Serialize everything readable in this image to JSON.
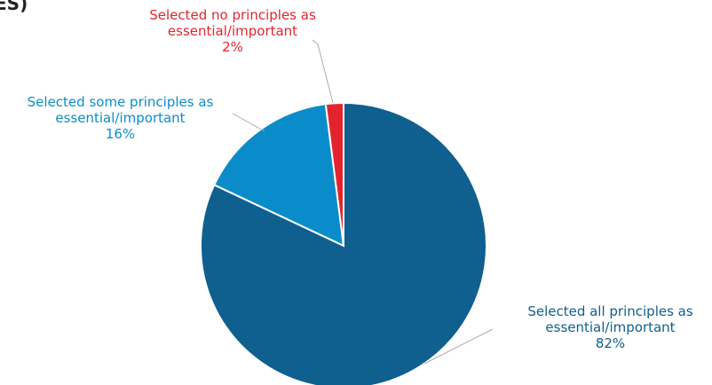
{
  "chart_data": {
    "type": "pie",
    "title": "ES)",
    "categories": [
      "Selected all principles as essential/important",
      "Selected some principles as essential/important",
      "Selected no principles as essential/important"
    ],
    "values": [
      82,
      16,
      2
    ],
    "value_labels": [
      "82%",
      "16%",
      "2%"
    ],
    "colors": [
      "#0f5f8f",
      "#0a8ccb",
      "#e3242f"
    ]
  }
}
